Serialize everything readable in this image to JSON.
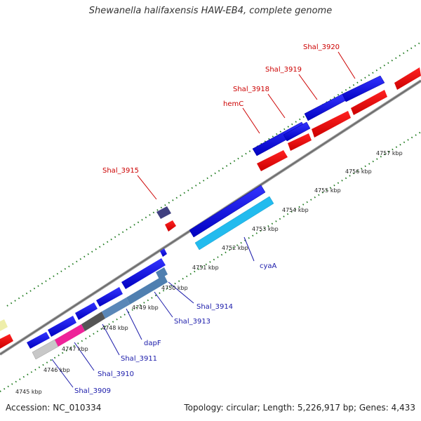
{
  "title": "Shewanella halifaxensis HAW-EB4, complete genome",
  "footer": {
    "accession": "Accession: NC_010334",
    "summary": "Topology: circular; Length: 5,226,917 bp; Genes: 4,433"
  },
  "ruler_labels": [
    "4745 kbp",
    "4746 kbp",
    "4747 kbp",
    "4748 kbp",
    "4749 kbp",
    "4750 kbp",
    "4751 kbp",
    "4752 kbp",
    "4753 kbp",
    "4754 kbp",
    "4755 kbp",
    "4756 kbp",
    "4757 kbp"
  ],
  "gene_labels": {
    "red": [
      "Shal_3920",
      "Shal_3919",
      "Shal_3918",
      "hemC",
      "Shal_3915"
    ],
    "blue": [
      "cyaA",
      "Shal_3914",
      "Shal_3913",
      "dapF",
      "Shal_3911",
      "Shal_3910",
      "Shal_3909"
    ]
  },
  "colors": {
    "forward_cds": "#0000e0",
    "reverse_cds": "#ee0000",
    "backbone": "#888888",
    "ticks": "#1e7a1e",
    "red_label": "#cc0000",
    "blue_label": "#1a1aaa"
  }
}
